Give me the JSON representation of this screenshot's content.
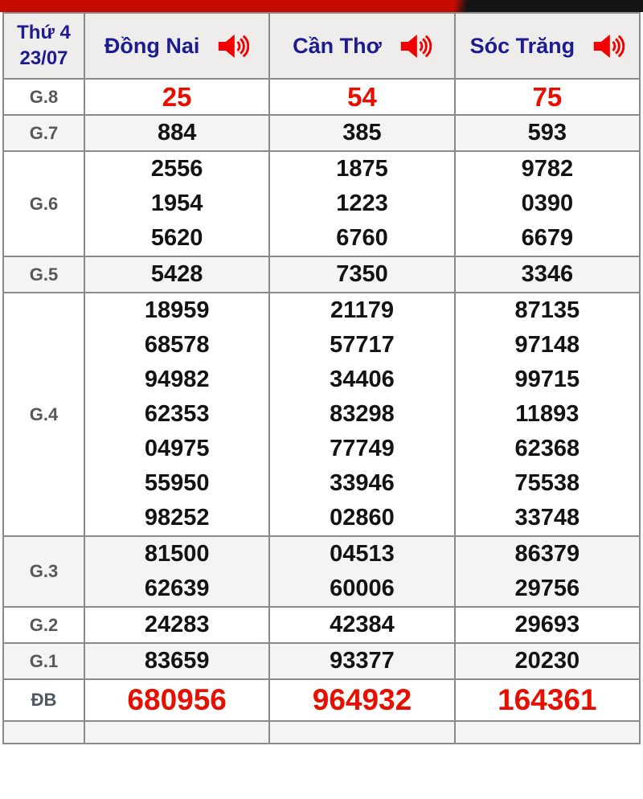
{
  "top_bar": {
    "red_color": "#c60b00",
    "black_color": "#141414"
  },
  "header": {
    "weekday": "Thứ 4",
    "date": "23/07",
    "columns": [
      {
        "label": "Đồng Nai",
        "icon": "speaker-icon"
      },
      {
        "label": "Cần Thơ",
        "icon": "speaker-icon"
      },
      {
        "label": "Sóc Trăng",
        "icon": "speaker-icon"
      }
    ],
    "accent_text_color": "#1c1b90",
    "icon_color": "#f20000"
  },
  "rows": [
    {
      "label": "G.8",
      "style": "red",
      "values": [
        [
          "25"
        ],
        [
          "54"
        ],
        [
          "75"
        ]
      ]
    },
    {
      "label": "G.7",
      "style": "",
      "values": [
        [
          "884"
        ],
        [
          "385"
        ],
        [
          "593"
        ]
      ]
    },
    {
      "label": "G.6",
      "style": "",
      "values": [
        [
          "2556",
          "1954",
          "5620"
        ],
        [
          "1875",
          "1223",
          "6760"
        ],
        [
          "9782",
          "0390",
          "6679"
        ]
      ]
    },
    {
      "label": "G.5",
      "style": "",
      "values": [
        [
          "5428"
        ],
        [
          "7350"
        ],
        [
          "3346"
        ]
      ]
    },
    {
      "label": "G.4",
      "style": "",
      "values": [
        [
          "18959",
          "68578",
          "94982",
          "62353",
          "04975",
          "55950",
          "98252"
        ],
        [
          "21179",
          "57717",
          "34406",
          "83298",
          "77749",
          "33946",
          "02860"
        ],
        [
          "87135",
          "97148",
          "99715",
          "11893",
          "62368",
          "75538",
          "33748"
        ]
      ]
    },
    {
      "label": "G.3",
      "style": "",
      "values": [
        [
          "81500",
          "62639"
        ],
        [
          "04513",
          "60006"
        ],
        [
          "86379",
          "29756"
        ]
      ]
    },
    {
      "label": "G.2",
      "style": "",
      "values": [
        [
          "24283"
        ],
        [
          "42384"
        ],
        [
          "29693"
        ]
      ]
    },
    {
      "label": "G.1",
      "style": "",
      "values": [
        [
          "83659"
        ],
        [
          "93377"
        ],
        [
          "20230"
        ]
      ]
    },
    {
      "label": "ĐB",
      "style": "jackpot",
      "values": [
        [
          "680956"
        ],
        [
          "964932"
        ],
        [
          "164361"
        ]
      ]
    }
  ],
  "colors": {
    "prize_number": "#131313",
    "highlight_number": "#e60f00",
    "row_alt_bg": "#f4f4f3",
    "header_bg": "#eeedec",
    "grid_line": "#8a8a8a"
  }
}
